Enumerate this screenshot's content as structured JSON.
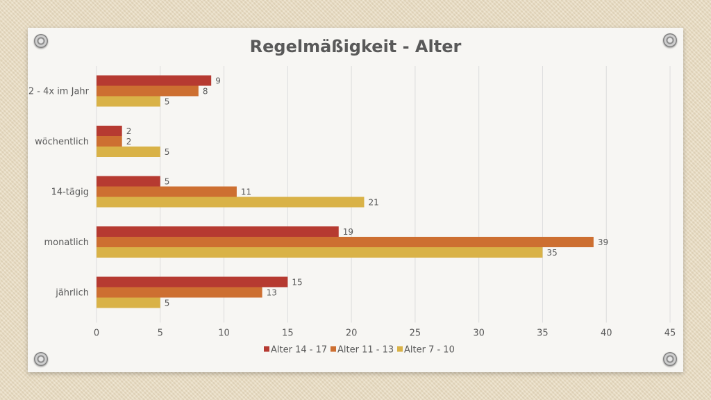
{
  "chart_data": {
    "type": "bar",
    "orientation": "horizontal",
    "title": "Regelmäßigkeit - Alter",
    "categories": [
      "2 - 4x im Jahr",
      "wöchentlich",
      "14-tägig",
      "monatlich",
      "jährlich"
    ],
    "series": [
      {
        "name": "Alter 14 - 17",
        "color": "#b63a31",
        "values": [
          9,
          2,
          5,
          19,
          15
        ]
      },
      {
        "name": "Alter 11 - 13",
        "color": "#cd6f31",
        "values": [
          8,
          2,
          11,
          39,
          13
        ]
      },
      {
        "name": "Alter 7 - 10",
        "color": "#d9b247",
        "values": [
          5,
          5,
          21,
          35,
          5
        ]
      }
    ],
    "xlim": [
      0,
      45
    ],
    "xticks": [
      "0",
      "5",
      "10",
      "15",
      "20",
      "25",
      "30",
      "35",
      "40",
      "45"
    ],
    "xlabel": "",
    "ylabel": "",
    "grid": true,
    "legend_position": "bottom"
  }
}
